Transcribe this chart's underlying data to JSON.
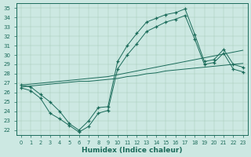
{
  "bg_color": "#cce8e2",
  "line_color": "#1a6b5a",
  "grid_color": "#aaccbb",
  "xlabel": "Humidex (Indice chaleur)",
  "xlim": [
    -0.5,
    23.5
  ],
  "ylim": [
    21.5,
    35.5
  ],
  "series_marked_top": {
    "x": [
      0,
      1,
      2,
      3,
      4,
      5,
      6,
      7,
      8,
      9,
      10,
      11,
      12,
      13,
      14,
      15,
      16,
      17,
      18,
      19,
      20,
      21,
      22,
      23
    ],
    "y": [
      26.8,
      26.6,
      25.8,
      25.0,
      24.0,
      22.7,
      22.0,
      23.0,
      24.4,
      24.5,
      29.3,
      31.0,
      32.3,
      33.5,
      33.9,
      34.3,
      34.5,
      34.9,
      32.2,
      29.3,
      29.5,
      30.6,
      29.0,
      28.7
    ]
  },
  "series_marked_bot": {
    "x": [
      0,
      1,
      2,
      3,
      4,
      5,
      6,
      7,
      8,
      9,
      10,
      11,
      12,
      13,
      14,
      15,
      16,
      17,
      18,
      19,
      20,
      21,
      22,
      23
    ],
    "y": [
      26.5,
      26.2,
      25.4,
      23.8,
      23.2,
      22.5,
      21.8,
      22.4,
      23.8,
      24.1,
      28.5,
      30.0,
      31.2,
      32.5,
      33.0,
      33.5,
      33.8,
      34.2,
      31.7,
      29.0,
      29.2,
      30.2,
      28.5,
      28.2
    ]
  },
  "diag_top": {
    "x": [
      0,
      1,
      2,
      3,
      4,
      5,
      6,
      7,
      8,
      9,
      10,
      11,
      12,
      13,
      14,
      15,
      16,
      17,
      18,
      19,
      20,
      21,
      22,
      23
    ],
    "y": [
      26.8,
      26.9,
      27.0,
      27.1,
      27.2,
      27.3,
      27.4,
      27.5,
      27.6,
      27.7,
      27.9,
      28.1,
      28.3,
      28.5,
      28.7,
      28.9,
      29.1,
      29.3,
      29.5,
      29.7,
      29.9,
      30.1,
      30.3,
      30.5
    ]
  },
  "diag_bot": {
    "x": [
      0,
      1,
      2,
      3,
      4,
      5,
      6,
      7,
      8,
      9,
      10,
      11,
      12,
      13,
      14,
      15,
      16,
      17,
      18,
      19,
      20,
      21,
      22,
      23
    ],
    "y": [
      26.6,
      26.7,
      26.8,
      26.9,
      27.0,
      27.1,
      27.2,
      27.2,
      27.3,
      27.4,
      27.5,
      27.7,
      27.8,
      28.0,
      28.1,
      28.3,
      28.4,
      28.5,
      28.6,
      28.7,
      28.8,
      28.9,
      29.0,
      29.1
    ]
  }
}
